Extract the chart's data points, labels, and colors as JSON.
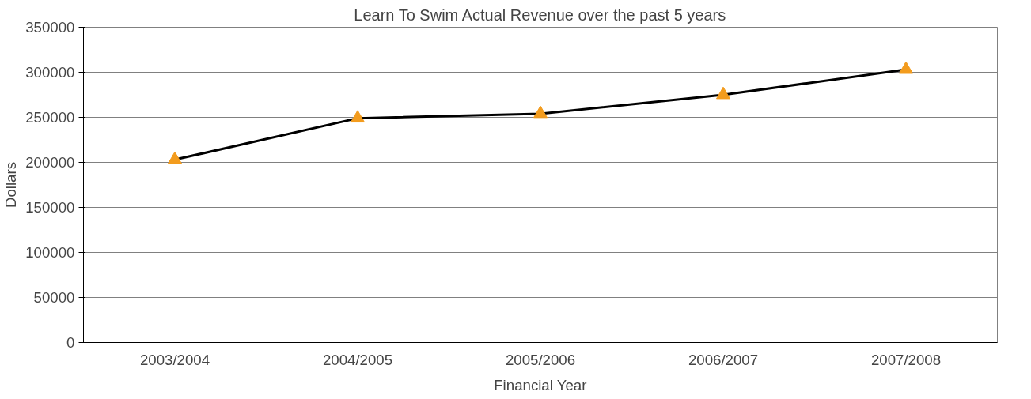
{
  "chart_data": {
    "type": "line",
    "title": "Learn To Swim Actual Revenue over the past 5 years",
    "xlabel": "Financial Year",
    "ylabel": "Dollars",
    "categories": [
      "2003/2004",
      "2004/2005",
      "2005/2006",
      "2006/2007",
      "2007/2008"
    ],
    "series": [
      {
        "color": "#000000",
        "colors": [
          "#f39c1e",
          "#f39c1e",
          "#f39c1e",
          "#f39c1e",
          "#f39c1e"
        ],
        "values": [
          203000,
          249000,
          254000,
          275000,
          303000
        ]
      }
    ],
    "ylim": [
      0,
      350000
    ],
    "yticks": [
      0,
      50000,
      100000,
      150000,
      200000,
      250000,
      300000,
      350000
    ],
    "grid": "y",
    "marker": "triangle",
    "line_style": "solid"
  }
}
